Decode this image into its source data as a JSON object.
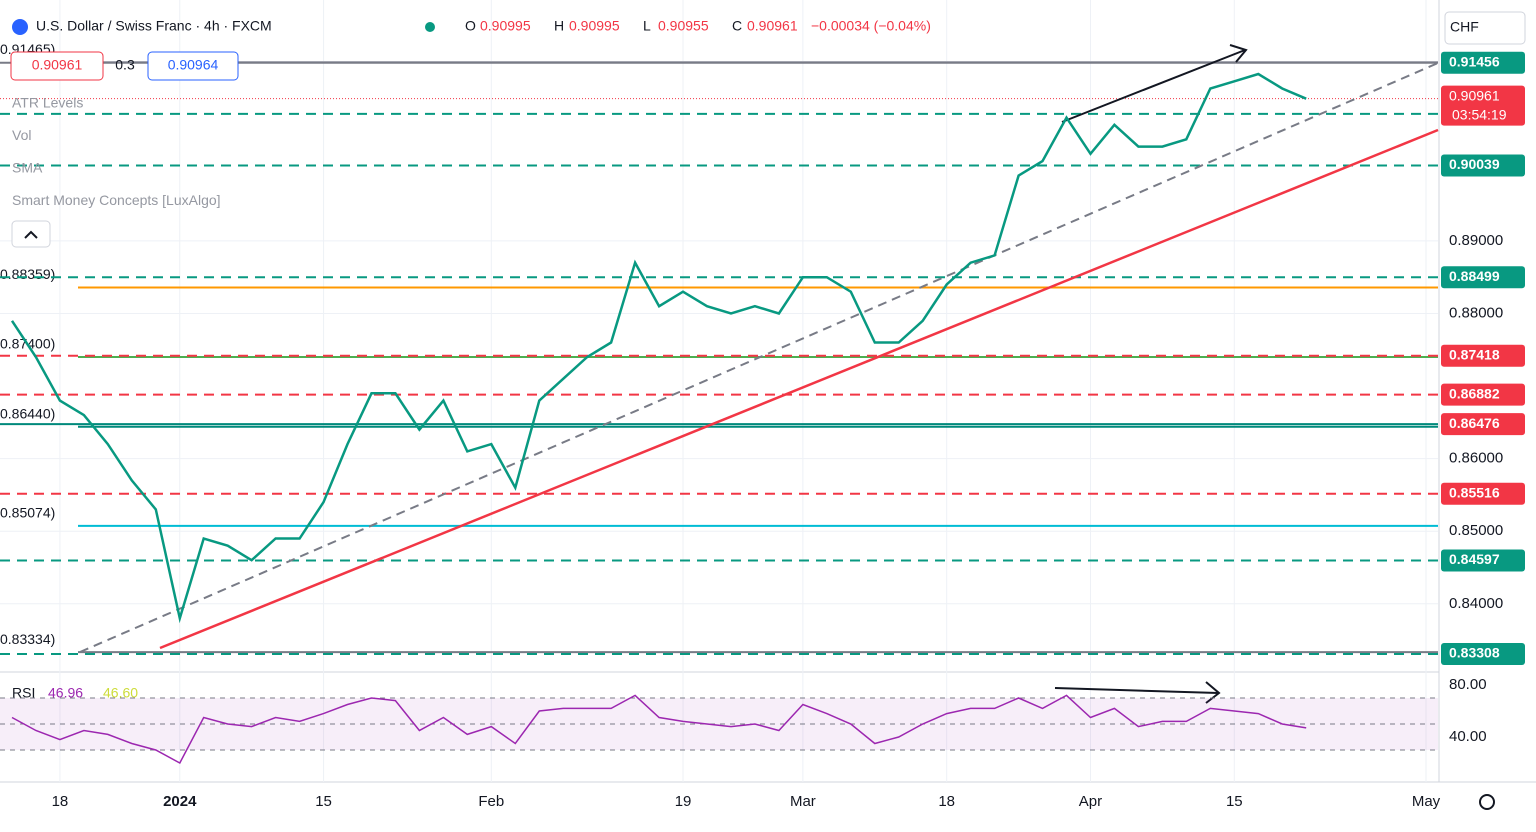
{
  "chart_data": {
    "type": "line",
    "title": "U.S. Dollar / Swiss Franc · 4h · FXCM",
    "ohlc": [
      {
        "label": "O",
        "value": 0.90995
      },
      {
        "label": "H",
        "value": 0.90995
      },
      {
        "label": "L",
        "value": 0.90955
      },
      {
        "label": "C",
        "value": 0.90961
      }
    ],
    "change": "−0.00034 (−0.04%)",
    "buttons": {
      "sell": 0.90961,
      "spread": 0.3,
      "buy": 0.90964
    },
    "currency": "CHF",
    "indicators": [
      "ATR Levels",
      "Vol",
      "SMA",
      "Smart Money Concepts [LuxAlgo]"
    ],
    "categories": [
      null,
      null,
      "18",
      null,
      null,
      null,
      null,
      "2024",
      null,
      null,
      null,
      null,
      null,
      "15",
      null,
      null,
      null,
      null,
      null,
      null,
      "Feb",
      null,
      null,
      null,
      null,
      null,
      null,
      null,
      "19",
      null,
      null,
      null,
      null,
      "Mar",
      null,
      null,
      null,
      null,
      null,
      "18",
      null,
      null,
      null,
      null,
      null,
      "Apr",
      null,
      null,
      null,
      null,
      null,
      "15",
      null,
      null,
      null,
      null,
      null,
      null,
      null,
      "May"
    ],
    "series": [
      {
        "name": "USD/CHF",
        "color": "#089981",
        "values": [
          0.879,
          0.874,
          0.868,
          0.866,
          0.862,
          0.857,
          0.853,
          0.838,
          0.849,
          0.848,
          0.846,
          0.849,
          0.849,
          0.854,
          0.862,
          0.869,
          0.869,
          0.864,
          0.868,
          0.861,
          0.862,
          0.856,
          0.868,
          0.871,
          0.874,
          0.876,
          0.887,
          0.881,
          0.883,
          0.881,
          0.88,
          0.881,
          0.88,
          0.885,
          0.885,
          0.883,
          0.876,
          0.876,
          0.879,
          0.884,
          0.887,
          0.888,
          0.899,
          0.901,
          0.907,
          0.902,
          0.906,
          0.903,
          0.903,
          0.904,
          0.911,
          0.912,
          0.913,
          0.911,
          0.9096,
          null,
          null,
          null,
          null,
          null
        ]
      }
    ],
    "ylim": [
      0.8306,
      0.9232
    ],
    "yticks": [
      {
        "value": 0.84,
        "label": "0.84000"
      },
      {
        "value": 0.85,
        "label": "0.85000"
      },
      {
        "value": 0.86,
        "label": "0.86000"
      },
      {
        "value": 0.88,
        "label": "0.88000"
      },
      {
        "value": 0.89,
        "label": "0.89000"
      }
    ],
    "levels": [
      {
        "value": 0.91456,
        "color": "#787b86",
        "tag": "#089981",
        "dashed": false
      },
      {
        "value": 0.90751,
        "color": "#089981",
        "tag": "#089981",
        "dashed": true
      },
      {
        "value": 0.90039,
        "color": "#089981",
        "tag": "#089981",
        "dashed": true
      },
      {
        "value": 0.88499,
        "color": "#089981",
        "tag": "#089981",
        "dashed": true
      },
      {
        "value": 0.87418,
        "color": "#f23645",
        "tag": "#f23645",
        "dashed": true
      },
      {
        "value": 0.86882,
        "color": "#f23645",
        "tag": "#f23645",
        "dashed": true
      },
      {
        "value": 0.86476,
        "color": "#00897b",
        "tag": "#f23645",
        "dashed": false
      },
      {
        "value": 0.85516,
        "color": "#f23645",
        "tag": "#f23645",
        "dashed": true
      },
      {
        "value": 0.84597,
        "color": "#089981",
        "tag": "#089981",
        "dashed": true
      },
      {
        "value": 0.83308,
        "color": "#089981",
        "tag": "#089981",
        "dashed": true
      }
    ],
    "side_levels": [
      {
        "value": 0.91465,
        "label": "0.91465)",
        "color": "#b2b5be"
      },
      {
        "value": 0.88359,
        "label": "0.88359)",
        "color": "#ff9800"
      },
      {
        "value": 0.874,
        "label": "0.87400)",
        "color": "#4caf50"
      },
      {
        "value": 0.8644,
        "label": "0.86440)",
        "color": "#00897b"
      },
      {
        "value": 0.85074,
        "label": "0.85074)",
        "color": "#00bcd4"
      },
      {
        "value": 0.83334,
        "label": "0.83334)",
        "color": "#787b86"
      }
    ],
    "last_price": {
      "value": 0.90961,
      "countdown": "03:54:19",
      "color": "#f23645"
    },
    "rsi": {
      "name": "RSI",
      "value": 46.96,
      "sma": 46.6,
      "sma_label": "46.60",
      "color": "#9c27b0",
      "ylim": [
        5.4,
        90
      ],
      "yticks": [
        {
          "value": 80,
          "label": "80.00"
        },
        {
          "value": 40,
          "label": "40.00"
        }
      ],
      "bands": [
        70,
        50,
        30
      ],
      "values": [
        55,
        45,
        38,
        45,
        42,
        35,
        30,
        20,
        55,
        50,
        48,
        55,
        52,
        58,
        65,
        70,
        68,
        45,
        55,
        42,
        48,
        35,
        60,
        62,
        62,
        62,
        72,
        55,
        52,
        50,
        48,
        50,
        45,
        65,
        58,
        50,
        35,
        40,
        50,
        58,
        62,
        62,
        70,
        62,
        72,
        55,
        62,
        48,
        52,
        52,
        62,
        60,
        58,
        50,
        47,
        null,
        null,
        null,
        null,
        null
      ]
    }
  }
}
